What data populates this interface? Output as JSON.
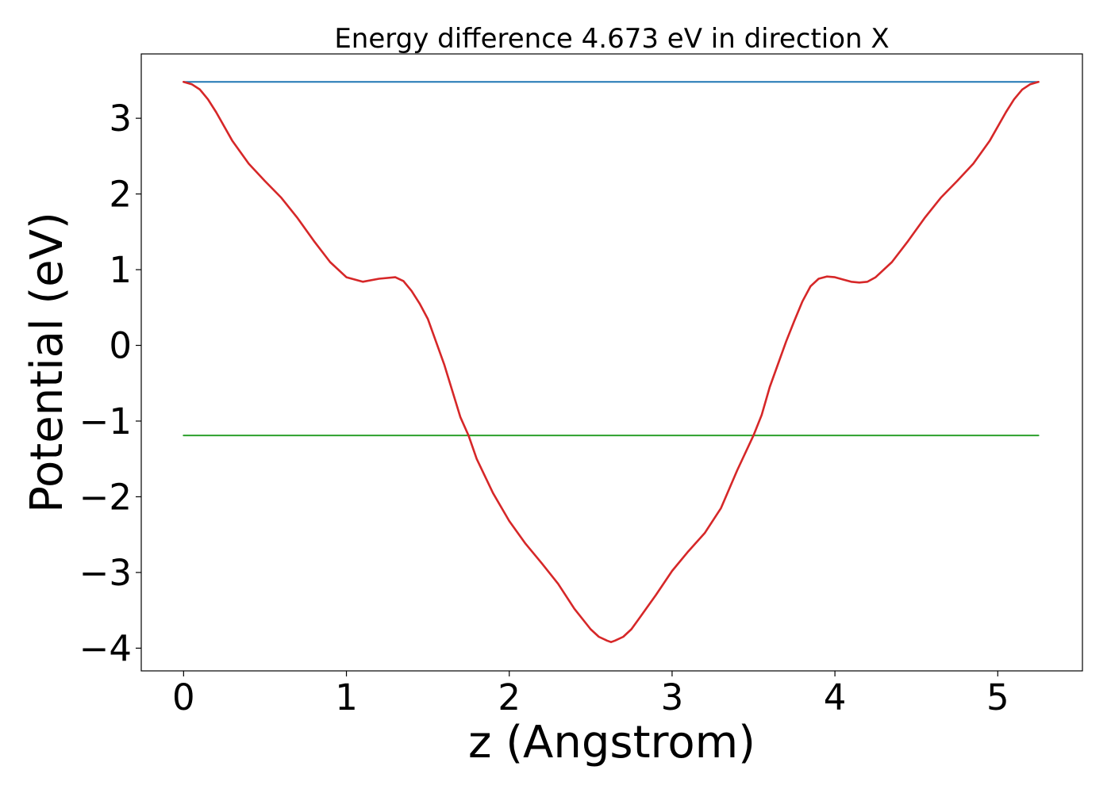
{
  "chart_data": {
    "type": "line",
    "title": "Energy difference 4.673 eV in direction X",
    "xlabel": "z (Angstrom)",
    "ylabel": "Potential (eV)",
    "xlim": [
      -0.26,
      5.52
    ],
    "ylim": [
      -4.3,
      3.85
    ],
    "xticks": [
      {
        "value": 0,
        "label": "0"
      },
      {
        "value": 1,
        "label": "1"
      },
      {
        "value": 2,
        "label": "2"
      },
      {
        "value": 3,
        "label": "3"
      },
      {
        "value": 4,
        "label": "4"
      },
      {
        "value": 5,
        "label": "5"
      }
    ],
    "yticks": [
      {
        "value": 3,
        "label": "3"
      },
      {
        "value": 2,
        "label": "2"
      },
      {
        "value": 1,
        "label": "1"
      },
      {
        "value": 0,
        "label": "0"
      },
      {
        "value": -1,
        "label": "−1"
      },
      {
        "value": -2,
        "label": "−2"
      },
      {
        "value": -3,
        "label": "−3"
      },
      {
        "value": -4,
        "label": "−4"
      }
    ],
    "grid": false,
    "legend": "none",
    "series": [
      {
        "color": "#1f77b4",
        "x": [
          0.0,
          5.25
        ],
        "y": [
          3.48,
          3.48
        ]
      },
      {
        "color": "#2ca02c",
        "x": [
          0.0,
          5.25
        ],
        "y": [
          -1.19,
          -1.19
        ]
      },
      {
        "color": "#d62728",
        "x": [
          0.0,
          0.05,
          0.1,
          0.15,
          0.2,
          0.3,
          0.4,
          0.5,
          0.6,
          0.7,
          0.8,
          0.9,
          1.0,
          1.1,
          1.2,
          1.3,
          1.35,
          1.4,
          1.45,
          1.5,
          1.6,
          1.7,
          1.75,
          1.8,
          1.9,
          2.0,
          2.1,
          2.2,
          2.3,
          2.4,
          2.5,
          2.55,
          2.6,
          2.625,
          2.65,
          2.7,
          2.75,
          2.8,
          2.9,
          3.0,
          3.1,
          3.2,
          3.3,
          3.4,
          3.5,
          3.55,
          3.6,
          3.7,
          3.75,
          3.8,
          3.85,
          3.9,
          3.95,
          4.0,
          4.05,
          4.1,
          4.15,
          4.2,
          4.25,
          4.35,
          4.45,
          4.55,
          4.65,
          4.75,
          4.85,
          4.95,
          5.05,
          5.1,
          5.15,
          5.2,
          5.25
        ],
        "y": [
          3.48,
          3.45,
          3.38,
          3.25,
          3.08,
          2.7,
          2.4,
          2.17,
          1.95,
          1.68,
          1.38,
          1.1,
          0.9,
          0.84,
          0.88,
          0.9,
          0.85,
          0.72,
          0.55,
          0.35,
          -0.25,
          -0.95,
          -1.19,
          -1.5,
          -1.95,
          -2.32,
          -2.62,
          -2.88,
          -3.15,
          -3.48,
          -3.75,
          -3.85,
          -3.9,
          -3.92,
          -3.9,
          -3.85,
          -3.75,
          -3.6,
          -3.3,
          -2.98,
          -2.72,
          -2.48,
          -2.15,
          -1.65,
          -1.19,
          -0.92,
          -0.55,
          0.05,
          0.32,
          0.58,
          0.78,
          0.88,
          0.91,
          0.9,
          0.87,
          0.84,
          0.83,
          0.84,
          0.9,
          1.1,
          1.38,
          1.68,
          1.95,
          2.17,
          2.4,
          2.7,
          3.08,
          3.25,
          3.38,
          3.45,
          3.48
        ]
      }
    ]
  }
}
